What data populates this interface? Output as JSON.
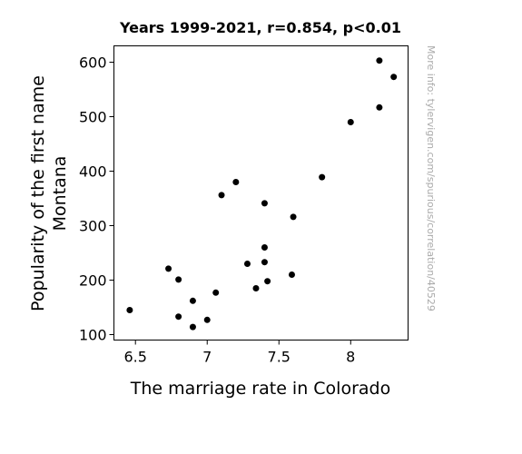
{
  "chart_data": {
    "type": "scatter",
    "title": "Years 1999-2021, r=0.854, p<0.01",
    "xlabel": "The marriage rate in Colorado",
    "ylabel_lines": [
      "Popularity of the first name",
      "Montana"
    ],
    "xlim": [
      6.35,
      8.4
    ],
    "ylim": [
      90,
      630
    ],
    "xticks": [
      {
        "value": 6.5,
        "label": "6.5"
      },
      {
        "value": 7.0,
        "label": "7"
      },
      {
        "value": 7.5,
        "label": "7.5"
      },
      {
        "value": 8.0,
        "label": "8"
      }
    ],
    "yticks": [
      {
        "value": 100,
        "label": "100"
      },
      {
        "value": 200,
        "label": "200"
      },
      {
        "value": 300,
        "label": "300"
      },
      {
        "value": 400,
        "label": "400"
      },
      {
        "value": 500,
        "label": "500"
      },
      {
        "value": 600,
        "label": "600"
      }
    ],
    "point_color": "#000000",
    "grid": false,
    "points": [
      {
        "x": 6.46,
        "y": 145
      },
      {
        "x": 6.73,
        "y": 221
      },
      {
        "x": 6.8,
        "y": 201
      },
      {
        "x": 6.8,
        "y": 133
      },
      {
        "x": 6.9,
        "y": 162
      },
      {
        "x": 6.9,
        "y": 114
      },
      {
        "x": 7.0,
        "y": 127
      },
      {
        "x": 7.06,
        "y": 177
      },
      {
        "x": 7.1,
        "y": 356
      },
      {
        "x": 7.2,
        "y": 380
      },
      {
        "x": 7.28,
        "y": 230
      },
      {
        "x": 7.34,
        "y": 185
      },
      {
        "x": 7.4,
        "y": 341
      },
      {
        "x": 7.4,
        "y": 260
      },
      {
        "x": 7.4,
        "y": 233
      },
      {
        "x": 7.42,
        "y": 198
      },
      {
        "x": 7.59,
        "y": 210
      },
      {
        "x": 7.6,
        "y": 316
      },
      {
        "x": 7.8,
        "y": 389
      },
      {
        "x": 8.0,
        "y": 490
      },
      {
        "x": 8.2,
        "y": 517
      },
      {
        "x": 8.2,
        "y": 603
      },
      {
        "x": 8.3,
        "y": 573
      }
    ]
  },
  "watermark": "More info: tylervigen.com/spurious/correlation/40529"
}
